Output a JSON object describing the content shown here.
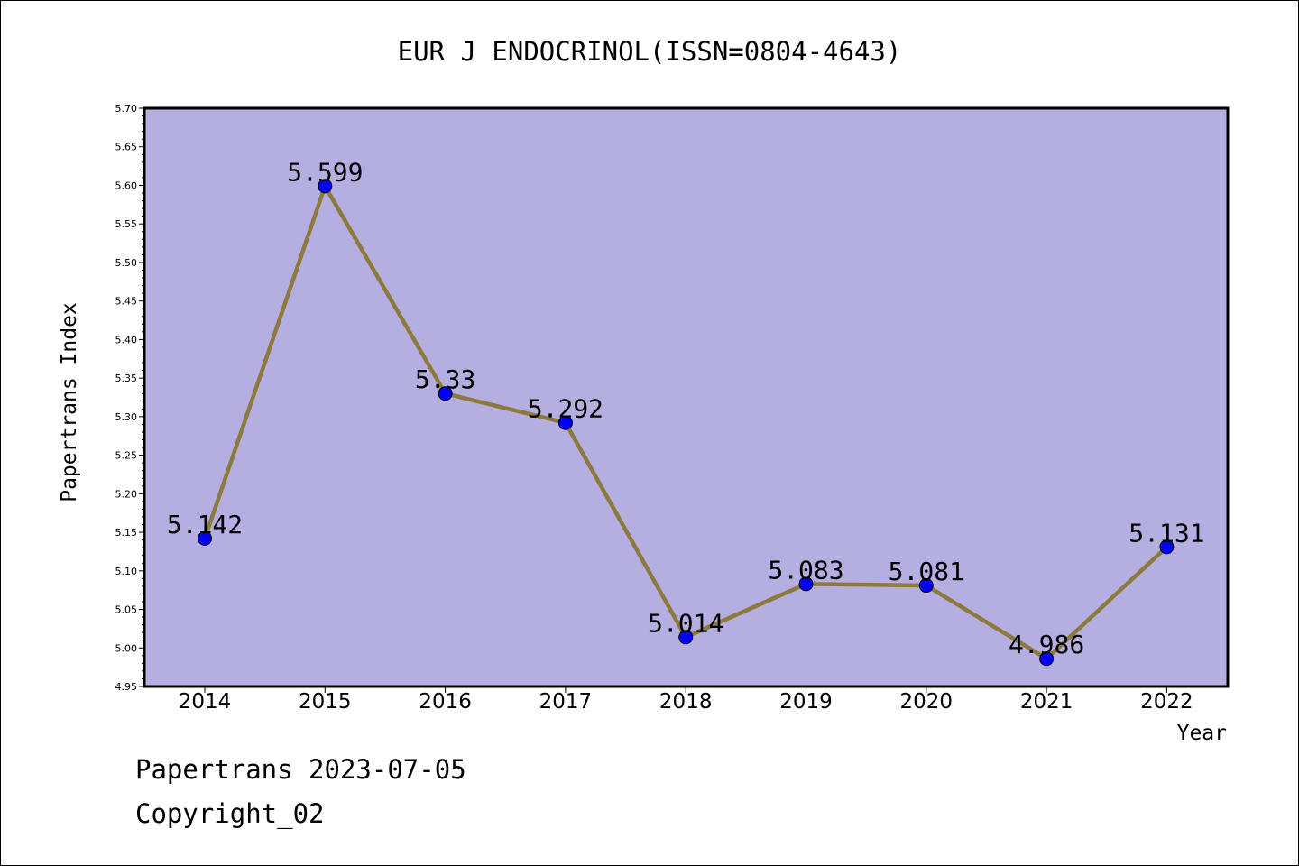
{
  "chart_data": {
    "type": "line",
    "title": "EUR J ENDOCRINOL(ISSN=0804-4643)",
    "xlabel": "Year",
    "ylabel": "Papertrans Index",
    "categories": [
      "2014",
      "2015",
      "2016",
      "2017",
      "2018",
      "2019",
      "2020",
      "2021",
      "2022"
    ],
    "series": [
      {
        "values": [
          5.142,
          5.599,
          5.33,
          5.292,
          5.014,
          5.083,
          5.081,
          4.986,
          5.131
        ],
        "labels": [
          "5.142",
          "5.599",
          "5.33",
          "5.292",
          "5.014",
          "5.083",
          "5.081",
          "4.986",
          "5.131"
        ]
      }
    ],
    "ylim": [
      4.95,
      5.7
    ],
    "yticks": [
      "4.95",
      "5.00",
      "5.05",
      "5.10",
      "5.15",
      "5.20",
      "5.25",
      "5.30",
      "5.35",
      "5.40",
      "5.45",
      "5.50",
      "5.55",
      "5.60",
      "5.65",
      "5.70"
    ],
    "grid": false,
    "colors": {
      "plot_background": "#b5aee1",
      "line": "#8b7a3c",
      "marker": "#0000ff"
    }
  },
  "footer": {
    "line1": "Papertrans 2023-07-05",
    "line2": "Copyright_02"
  }
}
